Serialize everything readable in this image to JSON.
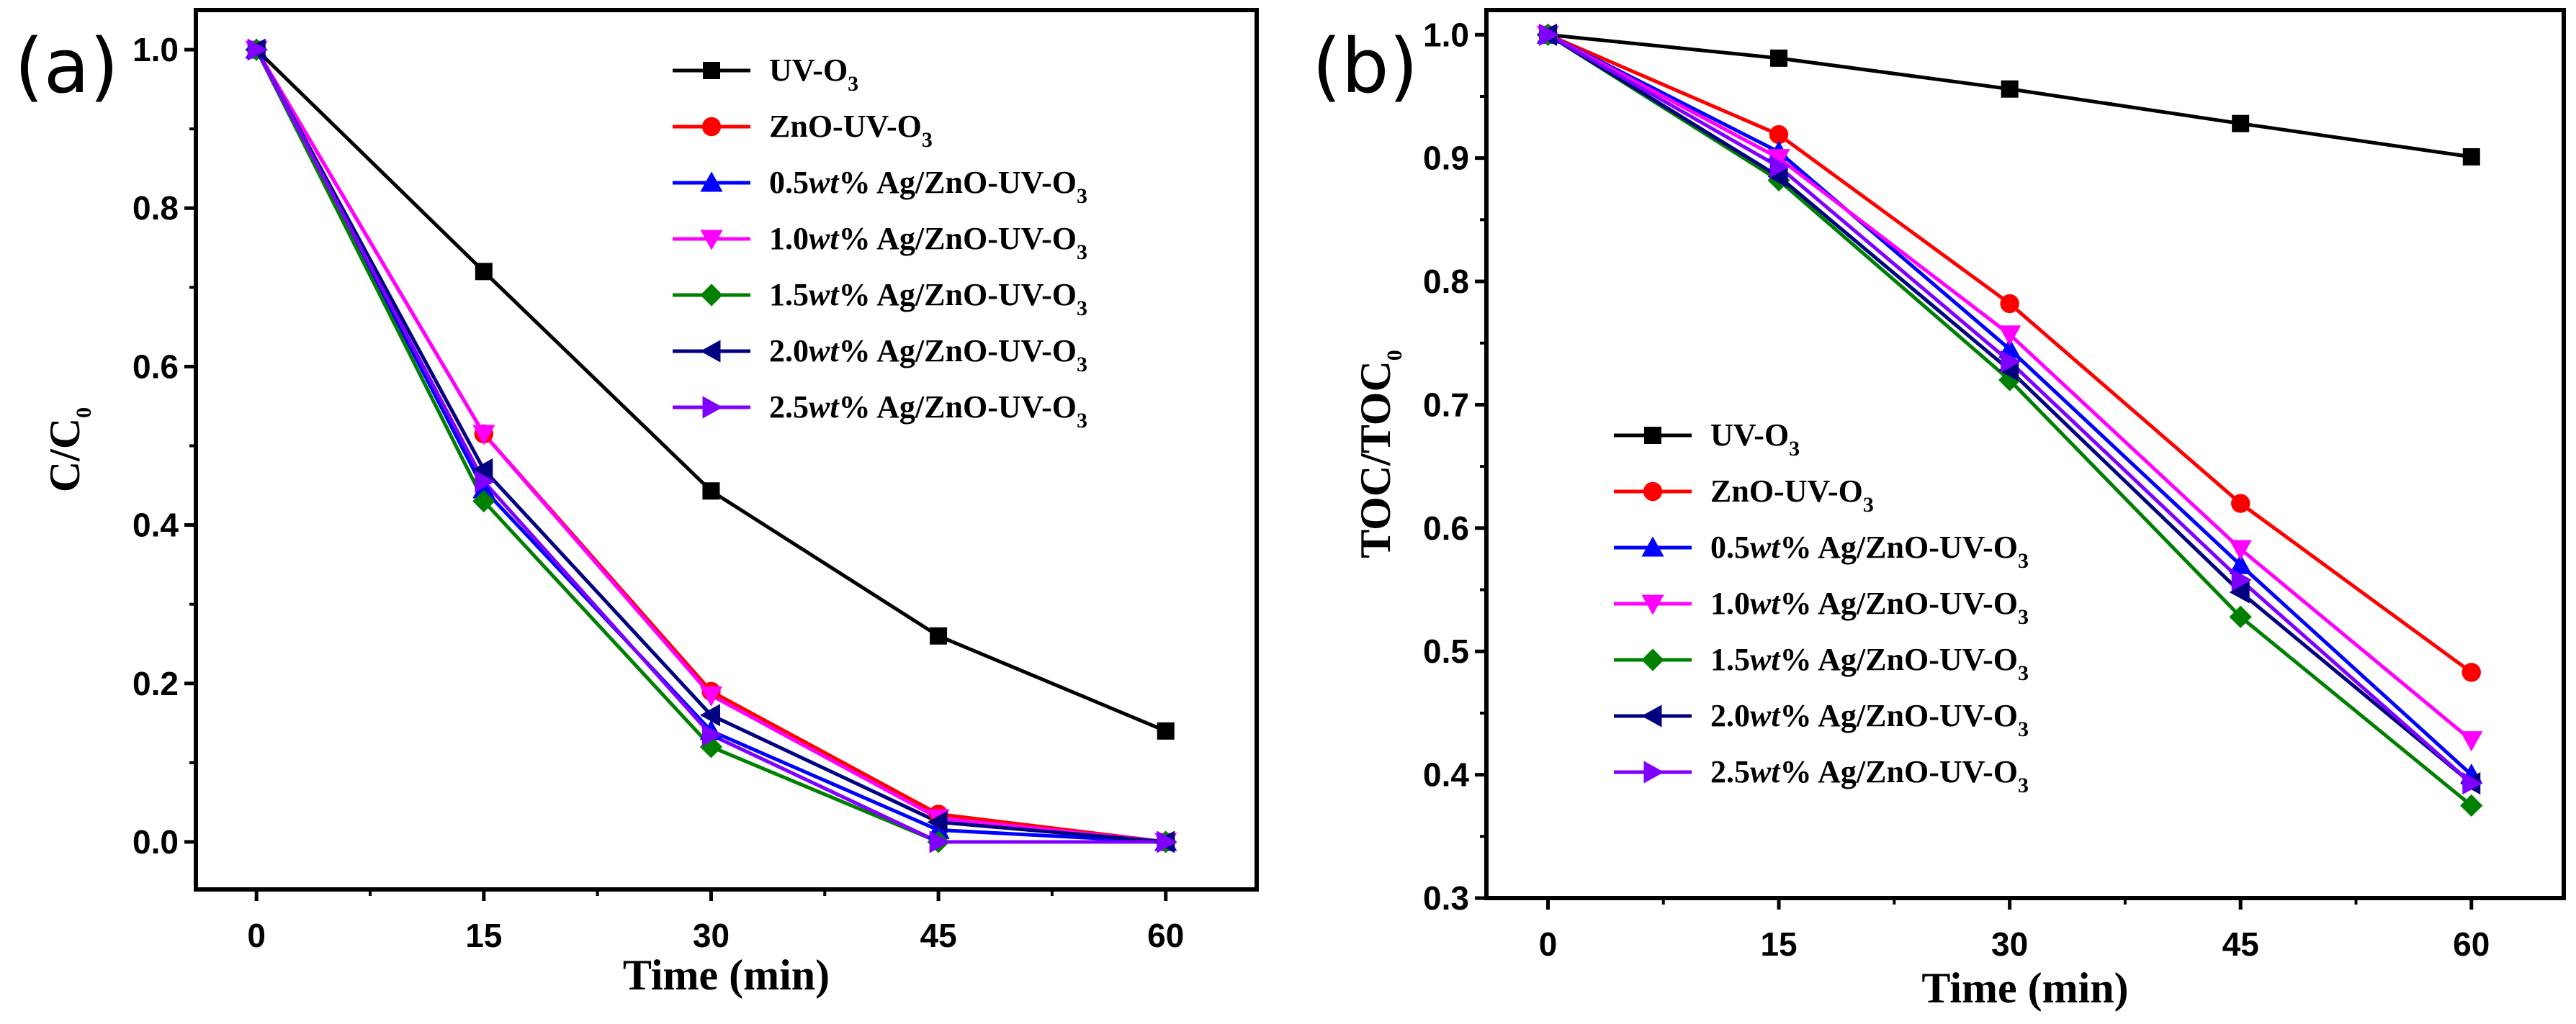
{
  "chart_data": [
    {
      "type": "line",
      "panel_label": "(a)",
      "xlabel": "Time (min)",
      "ylabel_main": "C/C",
      "ylabel_sub": "0",
      "x": [
        0,
        15,
        30,
        45,
        60
      ],
      "xlim": [
        -4,
        66
      ],
      "ylim": [
        -0.06,
        1.05
      ],
      "xticks": [
        "0",
        "15",
        "30",
        "45",
        "60"
      ],
      "yticks": [
        "0.0",
        "0.2",
        "0.4",
        "0.6",
        "0.8",
        "1.0"
      ],
      "legend_position": "top-right",
      "series": [
        {
          "name": "UV-O3",
          "label_pre": "",
          "label_ital": "",
          "label_main": "UV-O",
          "label_sub": "3",
          "color": "#000000",
          "marker": "square",
          "values": [
            1.0,
            0.72,
            0.443,
            0.26,
            0.14
          ]
        },
        {
          "name": "ZnO-UV-O3",
          "label_pre": "",
          "label_ital": "",
          "label_main": "ZnO-UV-O",
          "label_sub": "3",
          "color": "#ff0000",
          "marker": "circle",
          "values": [
            1.0,
            0.515,
            0.19,
            0.035,
            0.0
          ]
        },
        {
          "name": "0.5wt% Ag/ZnO-UV-O3",
          "label_pre": "0.5",
          "label_ital": "wt",
          "label_main": "% Ag/ZnO-UV-O",
          "label_sub": "3",
          "color": "#0000ff",
          "marker": "triangle-up",
          "values": [
            1.0,
            0.445,
            0.14,
            0.015,
            0.0
          ]
        },
        {
          "name": "1.0wt% Ag/ZnO-UV-O3",
          "label_pre": "1.0",
          "label_ital": "wt",
          "label_main": "% Ag/ZnO-UV-O",
          "label_sub": "3",
          "color": "#ff00ff",
          "marker": "triangle-down",
          "values": [
            1.0,
            0.515,
            0.185,
            0.03,
            0.0
          ]
        },
        {
          "name": "1.5wt% Ag/ZnO-UV-O3",
          "label_pre": "1.5",
          "label_ital": "wt",
          "label_main": "% Ag/ZnO-UV-O",
          "label_sub": "3",
          "color": "#008000",
          "marker": "diamond",
          "values": [
            1.0,
            0.43,
            0.12,
            0.0,
            0.0
          ]
        },
        {
          "name": "2.0wt% Ag/ZnO-UV-O3",
          "label_pre": "2.0",
          "label_ital": "wt",
          "label_main": "% Ag/ZnO-UV-O",
          "label_sub": "3",
          "color": "#000080",
          "marker": "triangle-left",
          "values": [
            1.0,
            0.47,
            0.16,
            0.025,
            0.0
          ]
        },
        {
          "name": "2.5wt% Ag/ZnO-UV-O3",
          "label_pre": "2.5",
          "label_ital": "wt",
          "label_main": "% Ag/ZnO-UV-O",
          "label_sub": "3",
          "color": "#8000ff",
          "marker": "triangle-right",
          "values": [
            1.0,
            0.455,
            0.135,
            0.0,
            0.0
          ]
        }
      ]
    },
    {
      "type": "line",
      "panel_label": "(b)",
      "xlabel": "Time (min)",
      "ylabel_main": "TOC/TOC",
      "ylabel_sub": "0",
      "x": [
        0,
        15,
        30,
        45,
        60
      ],
      "xlim": [
        -4,
        66
      ],
      "ylim": [
        0.3,
        1.02
      ],
      "xticks": [
        "0",
        "15",
        "30",
        "45",
        "60"
      ],
      "yticks": [
        "0.3",
        "0.4",
        "0.5",
        "0.6",
        "0.7",
        "0.8",
        "0.9",
        "1.0"
      ],
      "legend_position": "lower-left",
      "series": [
        {
          "name": "UV-O3",
          "label_pre": "",
          "label_ital": "",
          "label_main": "UV-O",
          "label_sub": "3",
          "color": "#000000",
          "marker": "square",
          "values": [
            1.0,
            0.981,
            0.956,
            0.928,
            0.901
          ]
        },
        {
          "name": "ZnO-UV-O3",
          "label_pre": "",
          "label_ital": "",
          "label_main": "ZnO-UV-O",
          "label_sub": "3",
          "color": "#ff0000",
          "marker": "circle",
          "values": [
            1.0,
            0.919,
            0.782,
            0.62,
            0.483
          ]
        },
        {
          "name": "0.5wt% Ag/ZnO-UV-O3",
          "label_pre": "0.5",
          "label_ital": "wt",
          "label_main": "% Ag/ZnO-UV-O",
          "label_sub": "3",
          "color": "#0000ff",
          "marker": "triangle-up",
          "values": [
            1.0,
            0.905,
            0.745,
            0.57,
            0.4
          ]
        },
        {
          "name": "1.0wt% Ag/ZnO-UV-O3",
          "label_pre": "1.0",
          "label_ital": "wt",
          "label_main": "% Ag/ZnO-UV-O",
          "label_sub": "3",
          "color": "#ff00ff",
          "marker": "triangle-down",
          "values": [
            1.0,
            0.9,
            0.757,
            0.583,
            0.428
          ]
        },
        {
          "name": "1.5wt% Ag/ZnO-UV-O3",
          "label_pre": "1.5",
          "label_ital": "wt",
          "label_main": "% Ag/ZnO-UV-O",
          "label_sub": "3",
          "color": "#008000",
          "marker": "diamond",
          "values": [
            1.0,
            0.882,
            0.72,
            0.528,
            0.375
          ]
        },
        {
          "name": "2.0wt% Ag/ZnO-UV-O3",
          "label_pre": "2.0",
          "label_ital": "wt",
          "label_main": "% Ag/ZnO-UV-O",
          "label_sub": "3",
          "color": "#000080",
          "marker": "triangle-left",
          "values": [
            1.0,
            0.885,
            0.728,
            0.548,
            0.393
          ]
        },
        {
          "name": "2.5wt% Ag/ZnO-UV-O3",
          "label_pre": "2.5",
          "label_ital": "wt",
          "label_main": "% Ag/ZnO-UV-O",
          "label_sub": "3",
          "color": "#8000ff",
          "marker": "triangle-right",
          "values": [
            1.0,
            0.893,
            0.735,
            0.558,
            0.393
          ]
        }
      ]
    }
  ]
}
